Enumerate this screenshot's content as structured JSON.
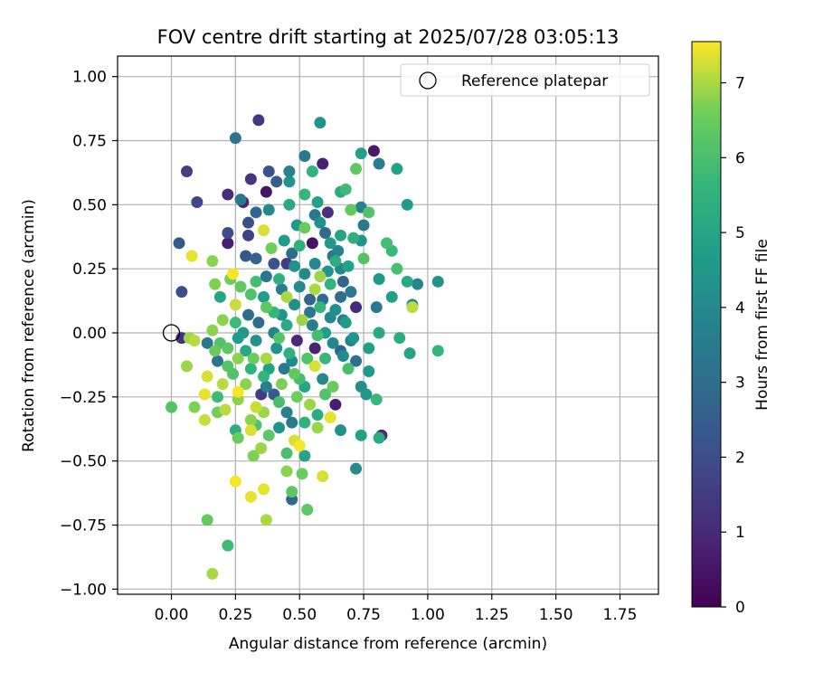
{
  "chart_data": {
    "type": "scatter",
    "title": "FOV centre drift starting at 2025/07/28 03:05:13",
    "xlabel": "Angular distance from reference (arcmin)",
    "ylabel": "Rotation from reference (arcmin)",
    "xlim": [
      -0.21,
      1.9
    ],
    "ylim": [
      -1.02,
      1.08
    ],
    "xticks": [
      0.0,
      0.25,
      0.5,
      0.75,
      1.0,
      1.25,
      1.5,
      1.75
    ],
    "xtick_labels": [
      "0.00",
      "0.25",
      "0.50",
      "0.75",
      "1.00",
      "1.25",
      "1.50",
      "1.75"
    ],
    "yticks": [
      1.0,
      0.75,
      0.5,
      0.25,
      0.0,
      -0.25,
      -0.5,
      -0.75,
      -1.0
    ],
    "ytick_labels": [
      "1.00",
      "0.75",
      "0.50",
      "0.25",
      "0.00",
      "−0.25",
      "−0.50",
      "−0.75",
      "−1.00"
    ],
    "grid": true,
    "legend": {
      "location": "upper right",
      "entries": [
        {
          "label": "Reference platepar",
          "marker": "open-circle"
        }
      ]
    },
    "reference_point": {
      "x": 0.0,
      "y": 0.0
    },
    "colorbar": {
      "label": "Hours from first FF file",
      "colormap": "viridis",
      "range": [
        0,
        7.55
      ],
      "ticks": [
        0,
        1,
        2,
        3,
        4,
        5,
        6,
        7
      ],
      "tick_labels": [
        "0",
        "1",
        "2",
        "3",
        "4",
        "5",
        "6",
        "7"
      ]
    },
    "points": [
      {
        "x": 0.34,
        "y": 0.83,
        "c": 1.4
      },
      {
        "x": 0.58,
        "y": 0.82,
        "c": 4.4
      },
      {
        "x": 0.25,
        "y": 0.76,
        "c": 3.2
      },
      {
        "x": 0.79,
        "y": 0.71,
        "c": 0.6
      },
      {
        "x": 0.74,
        "y": 0.7,
        "c": 4.8
      },
      {
        "x": 0.52,
        "y": 0.69,
        "c": 3.5
      },
      {
        "x": 0.59,
        "y": 0.66,
        "c": 0.8
      },
      {
        "x": 0.81,
        "y": 0.66,
        "c": 3.6
      },
      {
        "x": 0.06,
        "y": 0.63,
        "c": 1.6
      },
      {
        "x": 0.38,
        "y": 0.63,
        "c": 2.2
      },
      {
        "x": 0.46,
        "y": 0.63,
        "c": 3.8
      },
      {
        "x": 0.55,
        "y": 0.63,
        "c": 5.5
      },
      {
        "x": 0.72,
        "y": 0.64,
        "c": 6.3
      },
      {
        "x": 0.88,
        "y": 0.64,
        "c": 4.9
      },
      {
        "x": 0.31,
        "y": 0.6,
        "c": 1.3
      },
      {
        "x": 0.41,
        "y": 0.59,
        "c": 2.5
      },
      {
        "x": 0.46,
        "y": 0.59,
        "c": 4.3
      },
      {
        "x": 0.37,
        "y": 0.55,
        "c": 0.5
      },
      {
        "x": 0.22,
        "y": 0.54,
        "c": 1.1
      },
      {
        "x": 0.52,
        "y": 0.54,
        "c": 5.6
      },
      {
        "x": 0.66,
        "y": 0.55,
        "c": 5.2
      },
      {
        "x": 0.68,
        "y": 0.56,
        "c": 5.8
      },
      {
        "x": 0.1,
        "y": 0.51,
        "c": 1.8
      },
      {
        "x": 0.27,
        "y": 0.52,
        "c": 3.4
      },
      {
        "x": 0.28,
        "y": 0.51,
        "c": 0.9
      },
      {
        "x": 0.57,
        "y": 0.51,
        "c": 4.9
      },
      {
        "x": 0.74,
        "y": 0.49,
        "c": 3.7
      },
      {
        "x": 0.92,
        "y": 0.5,
        "c": 4.6
      },
      {
        "x": 0.61,
        "y": 0.47,
        "c": 1.2
      },
      {
        "x": 0.7,
        "y": 0.48,
        "c": 6.4
      },
      {
        "x": 0.77,
        "y": 0.47,
        "c": 6.1
      },
      {
        "x": 0.38,
        "y": 0.48,
        "c": 3.9
      },
      {
        "x": 0.46,
        "y": 0.5,
        "c": 5.1
      },
      {
        "x": 0.56,
        "y": 0.46,
        "c": 3.3
      },
      {
        "x": 0.33,
        "y": 0.47,
        "c": 2.8
      },
      {
        "x": 0.49,
        "y": 0.42,
        "c": 4.6
      },
      {
        "x": 0.3,
        "y": 0.43,
        "c": 2.1
      },
      {
        "x": 0.75,
        "y": 0.42,
        "c": 3.5
      },
      {
        "x": 0.52,
        "y": 0.41,
        "c": 6.5
      },
      {
        "x": 0.58,
        "y": 0.43,
        "c": 4.2
      },
      {
        "x": 0.36,
        "y": 0.4,
        "c": 7.3
      },
      {
        "x": 0.22,
        "y": 0.39,
        "c": 2.0
      },
      {
        "x": 0.3,
        "y": 0.38,
        "c": 1.7
      },
      {
        "x": 0.6,
        "y": 0.39,
        "c": 2.9
      },
      {
        "x": 0.66,
        "y": 0.38,
        "c": 5.0
      },
      {
        "x": 0.71,
        "y": 0.37,
        "c": 5.4
      },
      {
        "x": 0.03,
        "y": 0.35,
        "c": 2.4
      },
      {
        "x": 0.22,
        "y": 0.35,
        "c": 0.7
      },
      {
        "x": 0.44,
        "y": 0.36,
        "c": 4.7
      },
      {
        "x": 0.55,
        "y": 0.35,
        "c": 0.4
      },
      {
        "x": 0.74,
        "y": 0.36,
        "c": 4.4
      },
      {
        "x": 0.84,
        "y": 0.35,
        "c": 5.9
      },
      {
        "x": 0.39,
        "y": 0.33,
        "c": 6.6
      },
      {
        "x": 0.29,
        "y": 0.3,
        "c": 2.3
      },
      {
        "x": 0.33,
        "y": 0.29,
        "c": 2.6
      },
      {
        "x": 0.47,
        "y": 0.31,
        "c": 3.0
      },
      {
        "x": 0.65,
        "y": 0.32,
        "c": 3.8
      },
      {
        "x": 0.86,
        "y": 0.32,
        "c": 5.7
      },
      {
        "x": 0.08,
        "y": 0.3,
        "c": 7.4
      },
      {
        "x": 0.16,
        "y": 0.28,
        "c": 6.8
      },
      {
        "x": 0.75,
        "y": 0.29,
        "c": 6.2
      },
      {
        "x": 0.45,
        "y": 0.27,
        "c": 1.5
      },
      {
        "x": 0.56,
        "y": 0.27,
        "c": 4.0
      },
      {
        "x": 0.64,
        "y": 0.28,
        "c": 5.3
      },
      {
        "x": 0.69,
        "y": 0.26,
        "c": 4.9
      },
      {
        "x": 0.88,
        "y": 0.25,
        "c": 6.0
      },
      {
        "x": 0.24,
        "y": 0.23,
        "c": 7.5
      },
      {
        "x": 0.37,
        "y": 0.22,
        "c": 3.3
      },
      {
        "x": 0.58,
        "y": 0.22,
        "c": 6.9
      },
      {
        "x": 0.81,
        "y": 0.21,
        "c": 4.5
      },
      {
        "x": 0.92,
        "y": 0.2,
        "c": 5.1
      },
      {
        "x": 0.96,
        "y": 0.19,
        "c": 3.9
      },
      {
        "x": 1.04,
        "y": 0.2,
        "c": 4.3
      },
      {
        "x": 0.17,
        "y": 0.19,
        "c": 6.7
      },
      {
        "x": 0.27,
        "y": 0.18,
        "c": 6.4
      },
      {
        "x": 0.43,
        "y": 0.17,
        "c": 3.6
      },
      {
        "x": 0.5,
        "y": 0.18,
        "c": 4.1
      },
      {
        "x": 0.62,
        "y": 0.19,
        "c": 5.5
      },
      {
        "x": 0.04,
        "y": 0.16,
        "c": 2.0
      },
      {
        "x": 0.19,
        "y": 0.14,
        "c": 5.0
      },
      {
        "x": 0.31,
        "y": 0.15,
        "c": 6.1
      },
      {
        "x": 0.45,
        "y": 0.14,
        "c": 7.0
      },
      {
        "x": 0.54,
        "y": 0.13,
        "c": 2.7
      },
      {
        "x": 0.66,
        "y": 0.14,
        "c": 3.1
      },
      {
        "x": 0.86,
        "y": 0.14,
        "c": 4.8
      },
      {
        "x": 0.25,
        "y": 0.11,
        "c": 7.2
      },
      {
        "x": 0.37,
        "y": 0.1,
        "c": 6.3
      },
      {
        "x": 0.48,
        "y": 0.11,
        "c": 4.2
      },
      {
        "x": 0.58,
        "y": 0.1,
        "c": 5.6
      },
      {
        "x": 0.72,
        "y": 0.1,
        "c": 1.0
      },
      {
        "x": 0.8,
        "y": 0.1,
        "c": 3.4
      },
      {
        "x": 0.94,
        "y": 0.11,
        "c": 3.9
      },
      {
        "x": 0.94,
        "y": 0.1,
        "c": 7.1
      },
      {
        "x": 0.3,
        "y": 0.07,
        "c": 3.1
      },
      {
        "x": 0.43,
        "y": 0.07,
        "c": 4.4
      },
      {
        "x": 0.51,
        "y": 0.05,
        "c": 6.9
      },
      {
        "x": 0.62,
        "y": 0.06,
        "c": 4.0
      },
      {
        "x": 0.25,
        "y": 0.04,
        "c": 5.8
      },
      {
        "x": 0.34,
        "y": 0.04,
        "c": 2.9
      },
      {
        "x": 0.45,
        "y": 0.03,
        "c": 5.2
      },
      {
        "x": 0.55,
        "y": 0.03,
        "c": 3.6
      },
      {
        "x": 0.68,
        "y": 0.04,
        "c": 4.7
      },
      {
        "x": 0.16,
        "y": 0.01,
        "c": 6.8
      },
      {
        "x": 0.28,
        "y": 0.0,
        "c": 4.5
      },
      {
        "x": 0.4,
        "y": 0.0,
        "c": 3.8
      },
      {
        "x": 0.57,
        "y": -0.01,
        "c": 5.9
      },
      {
        "x": 0.81,
        "y": 0.0,
        "c": 5.1
      },
      {
        "x": 0.04,
        "y": -0.02,
        "c": 1.2
      },
      {
        "x": 0.07,
        "y": -0.02,
        "c": 6.9
      },
      {
        "x": 0.09,
        "y": -0.03,
        "c": 7.1
      },
      {
        "x": 0.14,
        "y": -0.04,
        "c": 3.3
      },
      {
        "x": 0.19,
        "y": -0.04,
        "c": 6.1
      },
      {
        "x": 0.33,
        "y": -0.03,
        "c": 4.3
      },
      {
        "x": 0.49,
        "y": -0.03,
        "c": 1.0
      },
      {
        "x": 0.7,
        "y": -0.03,
        "c": 3.7
      },
      {
        "x": 0.89,
        "y": -0.02,
        "c": 5.3
      },
      {
        "x": 0.17,
        "y": -0.07,
        "c": 6.5
      },
      {
        "x": 0.29,
        "y": -0.07,
        "c": 5.1
      },
      {
        "x": 0.41,
        "y": -0.06,
        "c": 4.4
      },
      {
        "x": 0.56,
        "y": -0.06,
        "c": 0.9
      },
      {
        "x": 0.66,
        "y": -0.07,
        "c": 2.7
      },
      {
        "x": 0.77,
        "y": -0.06,
        "c": 4.8
      },
      {
        "x": 0.93,
        "y": -0.08,
        "c": 5.0
      },
      {
        "x": 1.04,
        "y": -0.07,
        "c": 5.6
      },
      {
        "x": 0.18,
        "y": -0.11,
        "c": 3.2
      },
      {
        "x": 0.26,
        "y": -0.1,
        "c": 6.8
      },
      {
        "x": 0.37,
        "y": -0.1,
        "c": 7.0
      },
      {
        "x": 0.47,
        "y": -0.11,
        "c": 4.0
      },
      {
        "x": 0.6,
        "y": -0.1,
        "c": 5.7
      },
      {
        "x": 0.72,
        "y": -0.11,
        "c": 3.1
      },
      {
        "x": 0.06,
        "y": -0.13,
        "c": 6.9
      },
      {
        "x": 0.22,
        "y": -0.13,
        "c": 6.2
      },
      {
        "x": 0.31,
        "y": -0.14,
        "c": 5.5
      },
      {
        "x": 0.44,
        "y": -0.14,
        "c": 3.5
      },
      {
        "x": 0.56,
        "y": -0.13,
        "c": 7.3
      },
      {
        "x": 0.69,
        "y": -0.14,
        "c": 6.0
      },
      {
        "x": 0.77,
        "y": -0.15,
        "c": 4.6
      },
      {
        "x": 0.14,
        "y": -0.17,
        "c": 7.3
      },
      {
        "x": 0.24,
        "y": -0.16,
        "c": 6.1
      },
      {
        "x": 0.36,
        "y": -0.17,
        "c": 5.6
      },
      {
        "x": 0.48,
        "y": -0.16,
        "c": 6.4
      },
      {
        "x": 0.59,
        "y": -0.18,
        "c": 3.9
      },
      {
        "x": 0.2,
        "y": -0.2,
        "c": 7.1
      },
      {
        "x": 0.29,
        "y": -0.2,
        "c": 6.8
      },
      {
        "x": 0.37,
        "y": -0.21,
        "c": 3.7
      },
      {
        "x": 0.52,
        "y": -0.21,
        "c": 5.0
      },
      {
        "x": 0.63,
        "y": -0.21,
        "c": 6.5
      },
      {
        "x": 0.74,
        "y": -0.21,
        "c": 4.2
      },
      {
        "x": 0.13,
        "y": -0.24,
        "c": 7.4
      },
      {
        "x": 0.18,
        "y": -0.25,
        "c": 5.8
      },
      {
        "x": 0.26,
        "y": -0.23,
        "c": 7.5
      },
      {
        "x": 0.35,
        "y": -0.24,
        "c": 1.5
      },
      {
        "x": 0.4,
        "y": -0.24,
        "c": 2.4
      },
      {
        "x": 0.49,
        "y": -0.25,
        "c": 6.6
      },
      {
        "x": 0.6,
        "y": -0.24,
        "c": 6.1
      },
      {
        "x": 0.76,
        "y": -0.24,
        "c": 4.5
      },
      {
        "x": 0.8,
        "y": -0.26,
        "c": 5.7
      },
      {
        "x": 0.26,
        "y": -0.26,
        "c": 6.8
      },
      {
        "x": 0.42,
        "y": -0.27,
        "c": 6.0
      },
      {
        "x": 0.54,
        "y": -0.28,
        "c": 6.9
      },
      {
        "x": 0.64,
        "y": -0.28,
        "c": 0.7
      },
      {
        "x": 0.33,
        "y": -0.29,
        "c": 7.2
      },
      {
        "x": 0.18,
        "y": -0.31,
        "c": 6.6
      },
      {
        "x": 0.36,
        "y": -0.31,
        "c": 6.9
      },
      {
        "x": 0.45,
        "y": -0.31,
        "c": 3.7
      },
      {
        "x": 0.57,
        "y": -0.32,
        "c": 5.2
      },
      {
        "x": 0.09,
        "y": -0.29,
        "c": 6.7
      },
      {
        "x": 0.0,
        "y": -0.29,
        "c": 6.2
      },
      {
        "x": 0.13,
        "y": -0.34,
        "c": 7.2
      },
      {
        "x": 0.21,
        "y": -0.3,
        "c": 7.1
      },
      {
        "x": 0.62,
        "y": -0.33,
        "c": 7.4
      },
      {
        "x": 0.52,
        "y": -0.35,
        "c": 5.4
      },
      {
        "x": 0.31,
        "y": -0.34,
        "c": 6.8
      },
      {
        "x": 0.47,
        "y": -0.35,
        "c": 3.5
      },
      {
        "x": 0.33,
        "y": -0.36,
        "c": 6.1
      },
      {
        "x": 0.42,
        "y": -0.37,
        "c": 4.4
      },
      {
        "x": 0.57,
        "y": -0.37,
        "c": 6.9
      },
      {
        "x": 0.25,
        "y": -0.38,
        "c": 5.3
      },
      {
        "x": 0.31,
        "y": -0.38,
        "c": 7.3
      },
      {
        "x": 0.66,
        "y": -0.38,
        "c": 4.3
      },
      {
        "x": 0.38,
        "y": -0.4,
        "c": 6.3
      },
      {
        "x": 0.26,
        "y": -0.41,
        "c": 6.5
      },
      {
        "x": 0.48,
        "y": -0.42,
        "c": 7.3
      },
      {
        "x": 0.74,
        "y": -0.4,
        "c": 4.9
      },
      {
        "x": 0.82,
        "y": -0.4,
        "c": 1.0
      },
      {
        "x": 0.81,
        "y": -0.41,
        "c": 5.2
      },
      {
        "x": 0.35,
        "y": -0.45,
        "c": 6.9
      },
      {
        "x": 0.5,
        "y": -0.44,
        "c": 7.5
      },
      {
        "x": 0.32,
        "y": -0.48,
        "c": 6.7
      },
      {
        "x": 0.45,
        "y": -0.47,
        "c": 6.0
      },
      {
        "x": 0.52,
        "y": -0.48,
        "c": 5.0
      },
      {
        "x": 0.72,
        "y": -0.53,
        "c": 4.1
      },
      {
        "x": 0.45,
        "y": -0.54,
        "c": 6.8
      },
      {
        "x": 0.51,
        "y": -0.55,
        "c": 6.5
      },
      {
        "x": 0.59,
        "y": -0.56,
        "c": 7.3
      },
      {
        "x": 0.25,
        "y": -0.58,
        "c": 7.5
      },
      {
        "x": 0.47,
        "y": -0.62,
        "c": 6.3
      },
      {
        "x": 0.36,
        "y": -0.61,
        "c": 7.4
      },
      {
        "x": 0.47,
        "y": -0.65,
        "c": 2.8
      },
      {
        "x": 0.31,
        "y": -0.64,
        "c": 7.4
      },
      {
        "x": 0.53,
        "y": -0.69,
        "c": 6.3
      },
      {
        "x": 0.14,
        "y": -0.73,
        "c": 6.4
      },
      {
        "x": 0.37,
        "y": -0.73,
        "c": 7.0
      },
      {
        "x": 0.22,
        "y": -0.83,
        "c": 5.8
      },
      {
        "x": 0.16,
        "y": -0.94,
        "c": 7.0
      },
      {
        "x": 0.62,
        "y": 0.35,
        "c": 4.6
      },
      {
        "x": 0.63,
        "y": 0.3,
        "c": 3.3
      },
      {
        "x": 0.66,
        "y": 0.25,
        "c": 3.9
      },
      {
        "x": 0.61,
        "y": 0.24,
        "c": 4.4
      },
      {
        "x": 0.67,
        "y": 0.2,
        "c": 2.7
      },
      {
        "x": 0.7,
        "y": 0.16,
        "c": 3.5
      },
      {
        "x": 0.59,
        "y": 0.13,
        "c": 3.0
      },
      {
        "x": 0.64,
        "y": 0.09,
        "c": 4.2
      },
      {
        "x": 0.67,
        "y": 0.05,
        "c": 3.6
      },
      {
        "x": 0.6,
        "y": 0.0,
        "c": 4.7
      },
      {
        "x": 0.63,
        "y": -0.04,
        "c": 3.9
      },
      {
        "x": 0.67,
        "y": -0.09,
        "c": 4.1
      },
      {
        "x": 0.71,
        "y": -0.02,
        "c": 4.4
      },
      {
        "x": 0.54,
        "y": 0.08,
        "c": 3.4
      },
      {
        "x": 0.52,
        "y": 0.23,
        "c": 4.0
      },
      {
        "x": 0.48,
        "y": 0.26,
        "c": 4.3
      },
      {
        "x": 0.4,
        "y": 0.27,
        "c": 2.2
      },
      {
        "x": 0.42,
        "y": 0.21,
        "c": 5.4
      },
      {
        "x": 0.36,
        "y": 0.14,
        "c": 4.7
      },
      {
        "x": 0.33,
        "y": 0.2,
        "c": 5.9
      },
      {
        "x": 0.4,
        "y": 0.08,
        "c": 5.6
      },
      {
        "x": 0.42,
        "y": -0.02,
        "c": 6.2
      },
      {
        "x": 0.46,
        "y": -0.08,
        "c": 5.4
      },
      {
        "x": 0.38,
        "y": -0.14,
        "c": 4.9
      },
      {
        "x": 0.32,
        "y": -0.1,
        "c": 6.5
      },
      {
        "x": 0.22,
        "y": -0.06,
        "c": 6.3
      },
      {
        "x": 0.26,
        "y": -0.02,
        "c": 4.7
      },
      {
        "x": 0.2,
        "y": 0.05,
        "c": 6.8
      },
      {
        "x": 0.23,
        "y": 0.21,
        "c": 6.6
      },
      {
        "x": 0.5,
        "y": -0.18,
        "c": 5.9
      },
      {
        "x": 0.43,
        "y": -0.2,
        "c": 6.7
      },
      {
        "x": 0.53,
        "y": -0.1,
        "c": 6.1
      },
      {
        "x": 0.56,
        "y": 0.17,
        "c": 7.0
      },
      {
        "x": 0.5,
        "y": 0.34,
        "c": 5.4
      }
    ]
  }
}
